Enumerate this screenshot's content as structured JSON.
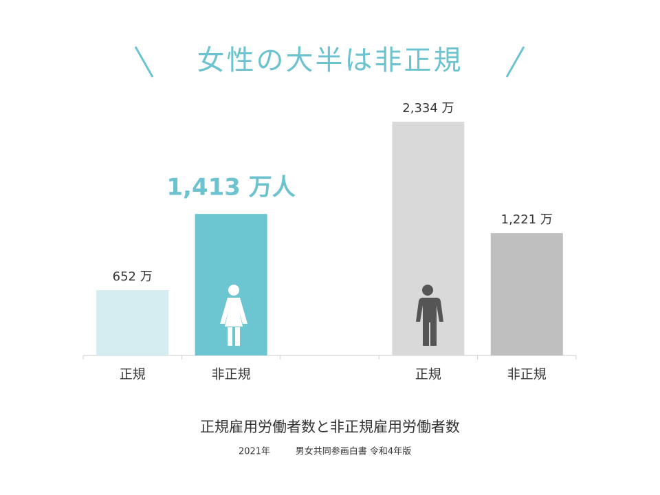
{
  "chart_data": {
    "type": "bar",
    "title": "女性の大半は非正規",
    "categories": [
      "正規",
      "非正規",
      null,
      "正規",
      "非正規"
    ],
    "values": [
      652,
      1413,
      null,
      2334,
      1221
    ],
    "value_labels": [
      "652 万",
      "1,413 万人",
      null,
      "2,334 万",
      "1,221 万"
    ],
    "colors": [
      "#d5ecf0",
      "#6cc6d1",
      null,
      "#d9d9d9",
      "#bfbfbf"
    ],
    "ylim": [
      0,
      2334
    ],
    "caption": "正規雇用労働者数と非正規雇用労働者数",
    "source_year": "2021年",
    "source": "男女共同参画白書 令和4年版"
  }
}
